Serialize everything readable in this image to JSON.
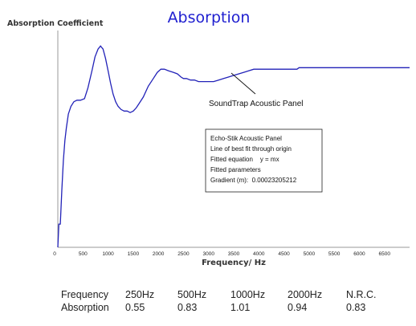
{
  "chart_data": {
    "type": "line",
    "title": "Absorption",
    "ylabel": "Absorption Coefficient",
    "xlabel": "Frequency/ Hz",
    "xlim": [
      0,
      7000
    ],
    "ylim": [
      0,
      1.4
    ],
    "x_ticks": [
      "0",
      "500",
      "1000",
      "1500",
      "2000",
      "2500",
      "3000",
      "3500",
      "4000",
      "4500",
      "5000",
      "5500",
      "6000",
      "6500"
    ],
    "series": [
      {
        "name": "SoundTrap Acoustic Panel",
        "color": "#2222b8",
        "x": [
          0,
          20,
          50,
          80,
          110,
          140,
          170,
          210,
          260,
          320,
          380,
          450,
          530,
          600,
          680,
          740,
          800,
          850,
          900,
          950,
          1000,
          1050,
          1100,
          1150,
          1200,
          1260,
          1320,
          1380,
          1440,
          1500,
          1560,
          1620,
          1700,
          1800,
          1900,
          1980,
          2050,
          2120,
          2200,
          2300,
          2380,
          2450,
          2500,
          2560,
          2640,
          2720,
          2800,
          2900,
          3000,
          3100,
          3200,
          3300,
          3400,
          3500,
          3600,
          3700,
          3800,
          3900,
          4000,
          4200,
          4400,
          4600,
          4760,
          4800,
          5000,
          5500,
          6000,
          6500,
          7000
        ],
        "y": [
          0.0,
          0.15,
          0.15,
          0.37,
          0.56,
          0.69,
          0.77,
          0.86,
          0.91,
          0.94,
          0.95,
          0.95,
          0.96,
          1.03,
          1.14,
          1.23,
          1.28,
          1.3,
          1.28,
          1.22,
          1.14,
          1.06,
          0.99,
          0.94,
          0.91,
          0.89,
          0.88,
          0.88,
          0.87,
          0.88,
          0.9,
          0.93,
          0.97,
          1.04,
          1.09,
          1.13,
          1.15,
          1.15,
          1.14,
          1.13,
          1.12,
          1.1,
          1.09,
          1.09,
          1.08,
          1.08,
          1.07,
          1.07,
          1.07,
          1.07,
          1.08,
          1.09,
          1.1,
          1.11,
          1.12,
          1.13,
          1.14,
          1.15,
          1.15,
          1.15,
          1.15,
          1.15,
          1.15,
          1.16,
          1.16,
          1.16,
          1.16,
          1.16,
          1.16
        ]
      }
    ],
    "annotations": {
      "series_label": "SoundTrap Acoustic Panel",
      "infobox": [
        "Echo-Stik Acoustic Panel",
        "Line of best fit through origin",
        "Fitted equation    y = mx",
        "Fitted parameters",
        "Gradient (m):  0.00023205212"
      ]
    },
    "table": {
      "headers": [
        "Frequency",
        "250Hz",
        "500Hz",
        "1000Hz",
        "2000Hz",
        "N.R.C."
      ],
      "row": [
        "Absorption",
        "0.55",
        "0.83",
        "1.01",
        "0.94",
        "0.83"
      ]
    }
  }
}
